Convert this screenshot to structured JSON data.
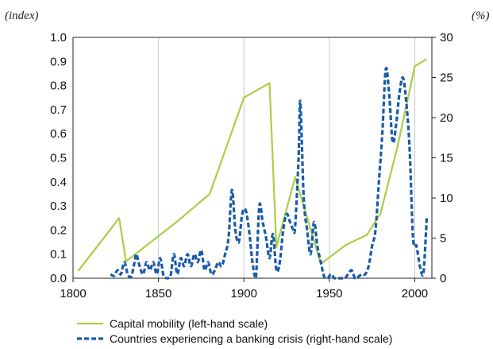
{
  "chart_data": {
    "type": "line",
    "left_axis_unit": "(index)",
    "right_axis_unit": "(%)",
    "x_ticks": [
      "1800",
      "1850",
      "1900",
      "1950",
      "2000"
    ],
    "left_ticks": [
      "0.0",
      "0.1",
      "0.2",
      "0.3",
      "0.4",
      "0.5",
      "0.6",
      "0.7",
      "0.8",
      "0.9",
      "1.0"
    ],
    "right_ticks": [
      "0",
      "5",
      "10",
      "15",
      "20",
      "25",
      "30"
    ],
    "xlim": [
      1800,
      2010
    ],
    "left_ylim": [
      0,
      1.0
    ],
    "right_ylim": [
      0,
      30
    ],
    "grid": "vertical",
    "legend_position": "bottom",
    "series": [
      {
        "name": "Capital mobility (left-hand scale)",
        "axis": "left",
        "color": "#a8cf45",
        "style": "solid",
        "x": [
          1803,
          1827,
          1831,
          1860,
          1880,
          1900,
          1915,
          1919,
          1930,
          1945,
          1960,
          1972,
          1980,
          1990,
          2000,
          2007
        ],
        "y": [
          0.03,
          0.25,
          0.07,
          0.23,
          0.35,
          0.75,
          0.81,
          0.13,
          0.42,
          0.06,
          0.14,
          0.18,
          0.27,
          0.55,
          0.88,
          0.91
        ]
      },
      {
        "name": "Countries experiencing a banking crisis (right-hand scale)",
        "axis": "right",
        "color": "#1a5aa8",
        "style": "dashed",
        "x": [
          1822,
          1824,
          1826,
          1828,
          1830,
          1832,
          1834,
          1836,
          1837,
          1839,
          1841,
          1843,
          1845,
          1847,
          1849,
          1851,
          1853,
          1855,
          1857,
          1859,
          1861,
          1863,
          1865,
          1867,
          1869,
          1871,
          1873,
          1875,
          1877,
          1879,
          1881,
          1883,
          1885,
          1887,
          1889,
          1891,
          1893,
          1895,
          1897,
          1899,
          1901,
          1903,
          1905,
          1907,
          1909,
          1911,
          1913,
          1915,
          1917,
          1919,
          1921,
          1923,
          1925,
          1927,
          1929,
          1930,
          1932,
          1933,
          1935,
          1937,
          1939,
          1941,
          1943,
          1945,
          1947,
          1949,
          1951,
          1953,
          1955,
          1957,
          1959,
          1961,
          1963,
          1965,
          1967,
          1969,
          1971,
          1973,
          1975,
          1977,
          1979,
          1981,
          1983,
          1985,
          1987,
          1989,
          1991,
          1993,
          1995,
          1997,
          1999,
          2001,
          2003,
          2005,
          2007
        ],
        "y": [
          0.5,
          0.3,
          1,
          0.5,
          2,
          0.5,
          0.2,
          2,
          3,
          1.5,
          0.5,
          2,
          1,
          2,
          0.5,
          2.5,
          0.3,
          0,
          0.2,
          3,
          0.5,
          2.5,
          1.5,
          3,
          1.5,
          3,
          2,
          3.5,
          1,
          2,
          0.5,
          1,
          2,
          1.5,
          3,
          5,
          11,
          6,
          4.5,
          8,
          8.5,
          6,
          2,
          0,
          9,
          7,
          5,
          2.5,
          5.5,
          1,
          2,
          6,
          8,
          7,
          6,
          6.5,
          15,
          22,
          10,
          6,
          3,
          7,
          4,
          2,
          0.2,
          0,
          0.5,
          0,
          0,
          0,
          0,
          0.5,
          1,
          0,
          0.2,
          0.5,
          0.5,
          1.5,
          4,
          6,
          12,
          18,
          26,
          23,
          17,
          19,
          23,
          25,
          22,
          16,
          5,
          4,
          1.5,
          0.5,
          7.5
        ]
      }
    ]
  }
}
